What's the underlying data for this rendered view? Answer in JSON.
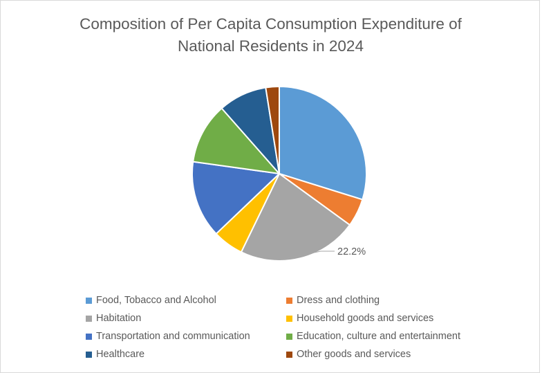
{
  "chart_data": {
    "type": "pie",
    "title_lines": [
      "Composition of Per Capita Consumption Expenditure of",
      "National Residents in 2024"
    ],
    "unit": "%",
    "slices": [
      {
        "name": "Food, Tobacco and Alcohol",
        "value": 29.8,
        "color": "#5B9BD5"
      },
      {
        "name": "Dress and clothing",
        "value": 5.2,
        "color": "#ED7D31"
      },
      {
        "name": "Habitation",
        "value": 22.2,
        "color": "#A5A5A5",
        "label": "22.2%"
      },
      {
        "name": "Household goods and services",
        "value": 5.7,
        "color": "#FFC000"
      },
      {
        "name": "Transportation and communication",
        "value": 14.3,
        "color": "#4472C4"
      },
      {
        "name": "Education, culture and entertainment",
        "value": 11.3,
        "color": "#70AD47"
      },
      {
        "name": "Healthcare",
        "value": 9.0,
        "color": "#255E91"
      },
      {
        "name": "Other goods and services",
        "value": 2.5,
        "color": "#9E480E"
      }
    ],
    "legend_position": "bottom",
    "legend_order": [
      "Food, Tobacco and Alcohol",
      "Dress and clothing",
      "Habitation",
      "Household goods and services",
      "Transportation and communication",
      "Education, culture and entertainment",
      "Healthcare",
      "Other goods and services"
    ]
  }
}
